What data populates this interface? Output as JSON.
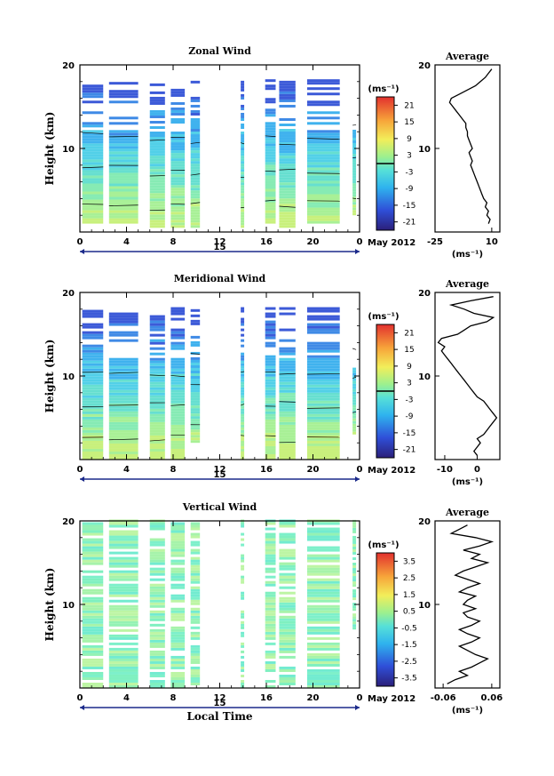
{
  "figure": {
    "date_label": "May 2012",
    "day_label": "15",
    "height_axis_label": "Height (km)",
    "time_axis_label": "Local Time",
    "unit_label": "(ms⁻¹)",
    "average_title": "Average"
  },
  "chart_data": [
    {
      "type": "heatmap",
      "title": "Zonal Wind",
      "ylabel": "Height (km)",
      "x_ticks": [
        "0",
        "4",
        "8",
        "12",
        "16",
        "20",
        "0"
      ],
      "y_ticks": [
        "20",
        "10"
      ],
      "xlim": [
        0,
        24
      ],
      "ylim": [
        0,
        20
      ],
      "colorbar": {
        "ticks": [
          "21",
          "15",
          "9",
          "3",
          "-3",
          "-9",
          "-15",
          "-21"
        ],
        "range": [
          -24,
          24
        ]
      },
      "data_columns": [
        {
          "from": 0.2,
          "to": 2.0,
          "bottom": 1,
          "top": 18
        },
        {
          "from": 2.5,
          "to": 5.0,
          "bottom": 1,
          "top": 18
        },
        {
          "from": 6.0,
          "to": 7.3,
          "bottom": 0.5,
          "top": 18
        },
        {
          "from": 7.8,
          "to": 9.0,
          "bottom": 0.5,
          "top": 18
        },
        {
          "from": 9.5,
          "to": 10.3,
          "bottom": 0.5,
          "top": 18
        },
        {
          "from": 13.8,
          "to": 14.1,
          "bottom": 0.5,
          "top": 18
        },
        {
          "from": 15.9,
          "to": 16.8,
          "bottom": 1.0,
          "top": 18
        },
        {
          "from": 17.1,
          "to": 18.5,
          "bottom": 0.5,
          "top": 18
        },
        {
          "from": 19.5,
          "to": 22.3,
          "bottom": 1,
          "top": 18
        },
        {
          "from": 23.4,
          "to": 23.7,
          "bottom": 2,
          "top": 12
        }
      ],
      "profile": {
        "title": "Average",
        "x_ticks": [
          "-25",
          "10"
        ],
        "xlim": [
          -25,
          15
        ],
        "xlabel": "(ms⁻¹)",
        "y": [
          1,
          1.5,
          2,
          2.5,
          3,
          3.5,
          4,
          4.5,
          5,
          5.5,
          6,
          6.5,
          7,
          7.5,
          8,
          8.5,
          9,
          9.5,
          10,
          10.5,
          11,
          11.5,
          12,
          12.5,
          13,
          13.5,
          14,
          14.5,
          15,
          15.5,
          16,
          16.5,
          17,
          17.5,
          18,
          18.5,
          19,
          19.5
        ],
        "x": [
          8,
          9,
          7,
          8,
          6,
          7,
          5,
          4,
          3,
          2,
          1,
          0,
          -1,
          -2,
          -3,
          -2,
          -3,
          -4,
          -2,
          -3,
          -4,
          -5,
          -5,
          -6,
          -6,
          -8,
          -10,
          -12,
          -14,
          -16,
          -15,
          -10,
          -5,
          0,
          3,
          6,
          8,
          10
        ]
      }
    },
    {
      "type": "heatmap",
      "title": "Meridional Wind",
      "ylabel": "Height (km)",
      "x_ticks": [
        "0",
        "4",
        "8",
        "12",
        "16",
        "20",
        "0"
      ],
      "y_ticks": [
        "20",
        "10"
      ],
      "xlim": [
        0,
        24
      ],
      "ylim": [
        0,
        20
      ],
      "colorbar": {
        "ticks": [
          "21",
          "15",
          "9",
          "3",
          "-3",
          "-9",
          "-15",
          "-21"
        ],
        "range": [
          -24,
          24
        ]
      },
      "data_columns": [
        {
          "from": 0.2,
          "to": 2.0,
          "bottom": 0,
          "top": 18
        },
        {
          "from": 2.5,
          "to": 5.0,
          "bottom": 0,
          "top": 18
        },
        {
          "from": 6.0,
          "to": 7.3,
          "bottom": 0,
          "top": 18
        },
        {
          "from": 7.8,
          "to": 9.0,
          "bottom": 0,
          "top": 18
        },
        {
          "from": 9.5,
          "to": 10.3,
          "bottom": 2,
          "top": 18
        },
        {
          "from": 13.8,
          "to": 14.1,
          "bottom": 0,
          "top": 18
        },
        {
          "from": 15.9,
          "to": 16.8,
          "bottom": 0,
          "top": 18
        },
        {
          "from": 17.1,
          "to": 18.5,
          "bottom": 0,
          "top": 18
        },
        {
          "from": 19.5,
          "to": 22.3,
          "bottom": 0,
          "top": 18
        },
        {
          "from": 23.4,
          "to": 23.7,
          "bottom": 3,
          "top": 11
        }
      ],
      "profile": {
        "title": "Average",
        "x_ticks": [
          "-10",
          "0"
        ],
        "xlim": [
          -13,
          7
        ],
        "xlabel": "(ms⁻¹)",
        "y": [
          0.5,
          1,
          1.5,
          2,
          2.5,
          3,
          3.5,
          4,
          4.5,
          5,
          5.5,
          6,
          6.5,
          7,
          7.5,
          8,
          8.5,
          9,
          9.5,
          10,
          10.5,
          11,
          11.5,
          12,
          12.5,
          13,
          13.5,
          14,
          14.5,
          15,
          15.5,
          16,
          16.5,
          17,
          17.5,
          18,
          18.5,
          19,
          19.5
        ],
        "x": [
          0,
          -1,
          0,
          1,
          0,
          2,
          3,
          4,
          5,
          6,
          5,
          4,
          3,
          2,
          0,
          -1,
          -2,
          -3,
          -4,
          -5,
          -6,
          -7,
          -8,
          -9,
          -10,
          -11,
          -10,
          -12,
          -11,
          -6,
          -4,
          -2,
          3,
          5,
          -1,
          -4,
          -8,
          -2,
          5
        ]
      }
    },
    {
      "type": "heatmap",
      "title": "Vertical Wind",
      "ylabel": "Height (km)",
      "xlabel": "Local Time",
      "x_ticks": [
        "0",
        "4",
        "8",
        "12",
        "16",
        "20",
        "0"
      ],
      "y_ticks": [
        "20",
        "10"
      ],
      "xlim": [
        0,
        24
      ],
      "ylim": [
        0,
        20
      ],
      "colorbar": {
        "ticks": [
          "3.5",
          "2.5",
          "1.5",
          "0.5",
          "-0.5",
          "-1.5",
          "-2.5",
          "-3.5"
        ],
        "range": [
          -4,
          4
        ]
      },
      "data_columns": [
        {
          "from": 0.2,
          "to": 2.0,
          "bottom": 0,
          "top": 20
        },
        {
          "from": 2.5,
          "to": 5.0,
          "bottom": 0,
          "top": 20
        },
        {
          "from": 6.0,
          "to": 7.3,
          "bottom": 0,
          "top": 20
        },
        {
          "from": 7.8,
          "to": 9.0,
          "bottom": 0,
          "top": 20
        },
        {
          "from": 9.5,
          "to": 10.3,
          "bottom": 0,
          "top": 20
        },
        {
          "from": 13.8,
          "to": 14.1,
          "bottom": 0,
          "top": 20
        },
        {
          "from": 15.9,
          "to": 16.8,
          "bottom": 0,
          "top": 20
        },
        {
          "from": 17.1,
          "to": 18.5,
          "bottom": 0,
          "top": 20
        },
        {
          "from": 19.5,
          "to": 22.3,
          "bottom": 0,
          "top": 20
        },
        {
          "from": 23.4,
          "to": 23.7,
          "bottom": 7,
          "top": 20
        }
      ],
      "profile": {
        "title": "Average",
        "x_ticks": [
          "-0.06",
          "0.06"
        ],
        "xlim": [
          -0.08,
          0.08
        ],
        "xlabel": "(ms⁻¹)",
        "y": [
          0.5,
          1,
          1.5,
          2,
          2.5,
          3,
          3.5,
          4,
          4.5,
          5,
          5.5,
          6,
          6.5,
          7,
          7.5,
          8,
          8.5,
          9,
          9.5,
          10,
          10.5,
          11,
          11.5,
          12,
          12.5,
          13,
          13.5,
          14,
          14.5,
          15,
          15.5,
          16,
          16.5,
          17,
          17.5,
          18,
          18.5,
          19,
          19.5
        ],
        "x": [
          -0.05,
          -0.03,
          0.0,
          -0.02,
          0.01,
          0.03,
          0.05,
          0.02,
          0.0,
          -0.02,
          0.01,
          0.03,
          0.0,
          -0.02,
          0.01,
          0.03,
          0.0,
          -0.01,
          0.02,
          -0.01,
          0.0,
          0.02,
          -0.02,
          0.0,
          0.03,
          0.0,
          -0.03,
          -0.01,
          0.02,
          0.05,
          0.01,
          0.03,
          -0.01,
          0.03,
          0.06,
          0.02,
          -0.04,
          -0.02,
          0.0
        ]
      }
    }
  ]
}
